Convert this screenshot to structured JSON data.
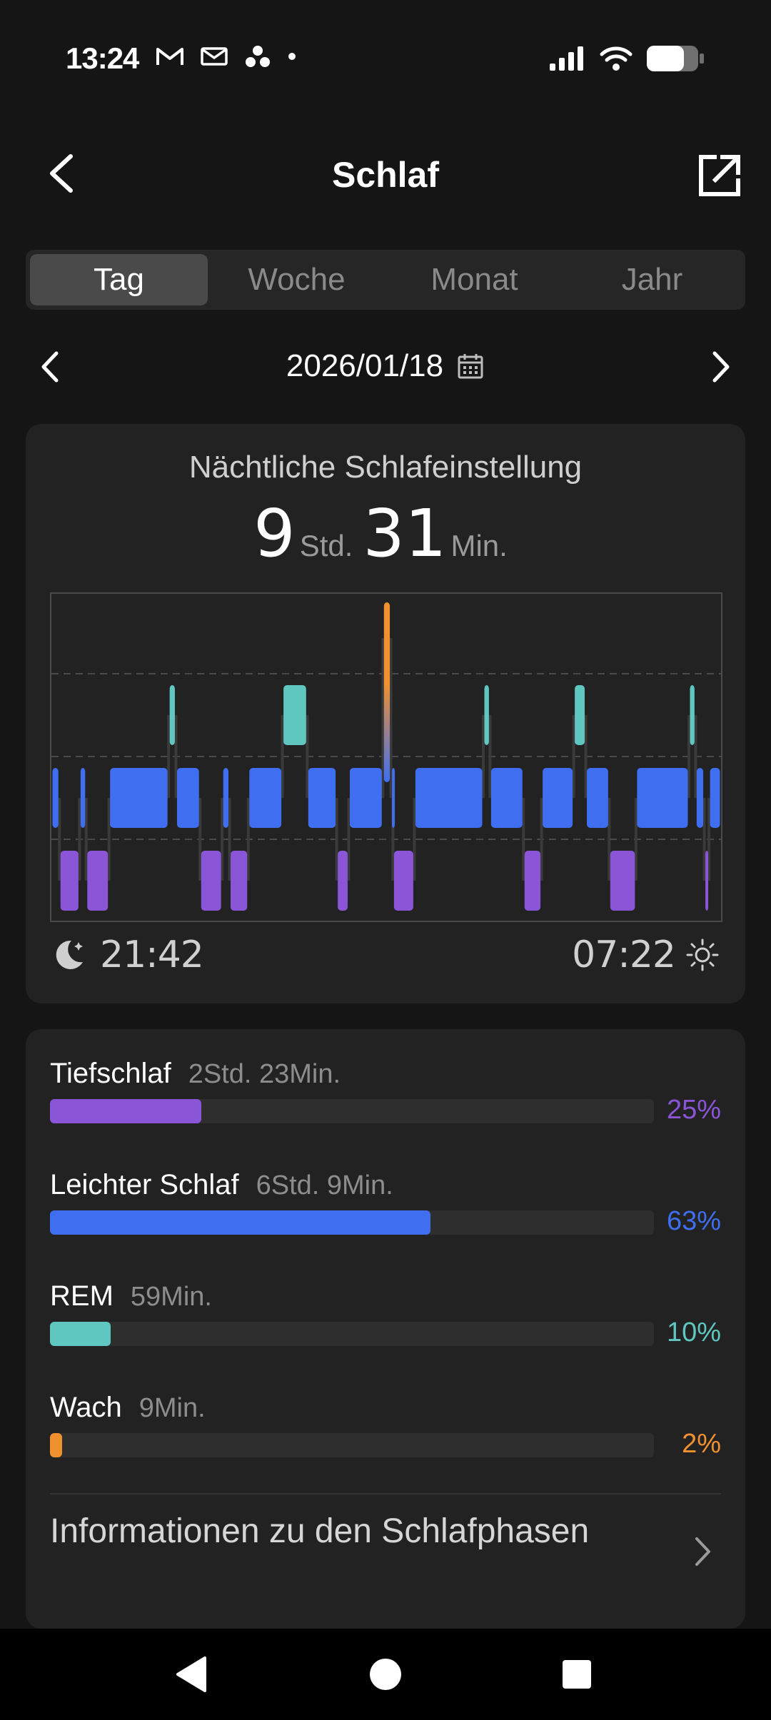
{
  "status_bar": {
    "time": "13:24"
  },
  "header": {
    "title": "Schlaf"
  },
  "tabs": [
    {
      "label": "Tag",
      "active": true
    },
    {
      "label": "Woche",
      "active": false
    },
    {
      "label": "Monat",
      "active": false
    },
    {
      "label": "Jahr",
      "active": false
    }
  ],
  "date_nav": {
    "date": "2026/01/18"
  },
  "sleep_card": {
    "title": "Nächtliche Schlafeinstellung",
    "hours": "9",
    "hours_unit": "Std.",
    "minutes": "31",
    "minutes_unit": "Min.",
    "start_time": "21:42",
    "end_time": "07:22"
  },
  "colors": {
    "deep": "#8A55D6",
    "light": "#3F6FF0",
    "rem": "#5FC7BF",
    "awake": "#F09130"
  },
  "chart_data": {
    "type": "bar",
    "levels": [
      "Wach",
      "REM",
      "Leichter Schlaf",
      "Tiefschlaf"
    ],
    "time_range": [
      "21:42",
      "07:22"
    ],
    "segments": [
      {
        "stage": "light",
        "start": 0.0,
        "end": 0.012
      },
      {
        "stage": "deep",
        "start": 0.012,
        "end": 0.042
      },
      {
        "stage": "light",
        "start": 0.042,
        "end": 0.052
      },
      {
        "stage": "deep",
        "start": 0.052,
        "end": 0.086
      },
      {
        "stage": "light",
        "start": 0.086,
        "end": 0.175
      },
      {
        "stage": "rem",
        "start": 0.175,
        "end": 0.186
      },
      {
        "stage": "light",
        "start": 0.186,
        "end": 0.222
      },
      {
        "stage": "deep",
        "start": 0.222,
        "end": 0.255
      },
      {
        "stage": "light",
        "start": 0.255,
        "end": 0.266
      },
      {
        "stage": "deep",
        "start": 0.266,
        "end": 0.294
      },
      {
        "stage": "light",
        "start": 0.294,
        "end": 0.345
      },
      {
        "stage": "rem",
        "start": 0.345,
        "end": 0.382
      },
      {
        "stage": "light",
        "start": 0.382,
        "end": 0.426
      },
      {
        "stage": "deep",
        "start": 0.426,
        "end": 0.444
      },
      {
        "stage": "light",
        "start": 0.444,
        "end": 0.495
      },
      {
        "stage": "awake",
        "start": 0.495,
        "end": 0.507
      },
      {
        "stage": "light",
        "start": 0.507,
        "end": 0.51
      },
      {
        "stage": "deep",
        "start": 0.51,
        "end": 0.542
      },
      {
        "stage": "light",
        "start": 0.542,
        "end": 0.645
      },
      {
        "stage": "rem",
        "start": 0.645,
        "end": 0.655
      },
      {
        "stage": "light",
        "start": 0.655,
        "end": 0.705
      },
      {
        "stage": "deep",
        "start": 0.705,
        "end": 0.732
      },
      {
        "stage": "light",
        "start": 0.732,
        "end": 0.78
      },
      {
        "stage": "rem",
        "start": 0.78,
        "end": 0.798
      },
      {
        "stage": "light",
        "start": 0.798,
        "end": 0.833
      },
      {
        "stage": "deep",
        "start": 0.833,
        "end": 0.873
      },
      {
        "stage": "light",
        "start": 0.873,
        "end": 0.952
      },
      {
        "stage": "rem",
        "start": 0.952,
        "end": 0.962
      },
      {
        "stage": "light",
        "start": 0.962,
        "end": 0.975
      },
      {
        "stage": "deep",
        "start": 0.975,
        "end": 0.982
      },
      {
        "stage": "light",
        "start": 0.982,
        "end": 1.0
      }
    ]
  },
  "phases": [
    {
      "name": "Tiefschlaf",
      "duration": "2Std. 23Min.",
      "percent_label": "25%",
      "percent": 25,
      "color": "#8A55D6"
    },
    {
      "name": "Leichter Schlaf",
      "duration": "6Std. 9Min.",
      "percent_label": "63%",
      "percent": 63,
      "color": "#3F6FF0"
    },
    {
      "name": "REM",
      "duration": "59Min.",
      "percent_label": "10%",
      "percent": 10,
      "color": "#5FC7BF"
    },
    {
      "name": "Wach",
      "duration": "9Min.",
      "percent_label": "2%",
      "percent": 2,
      "color": "#F09130"
    }
  ],
  "info": {
    "label": "Informationen zu den Schlafphasen"
  }
}
